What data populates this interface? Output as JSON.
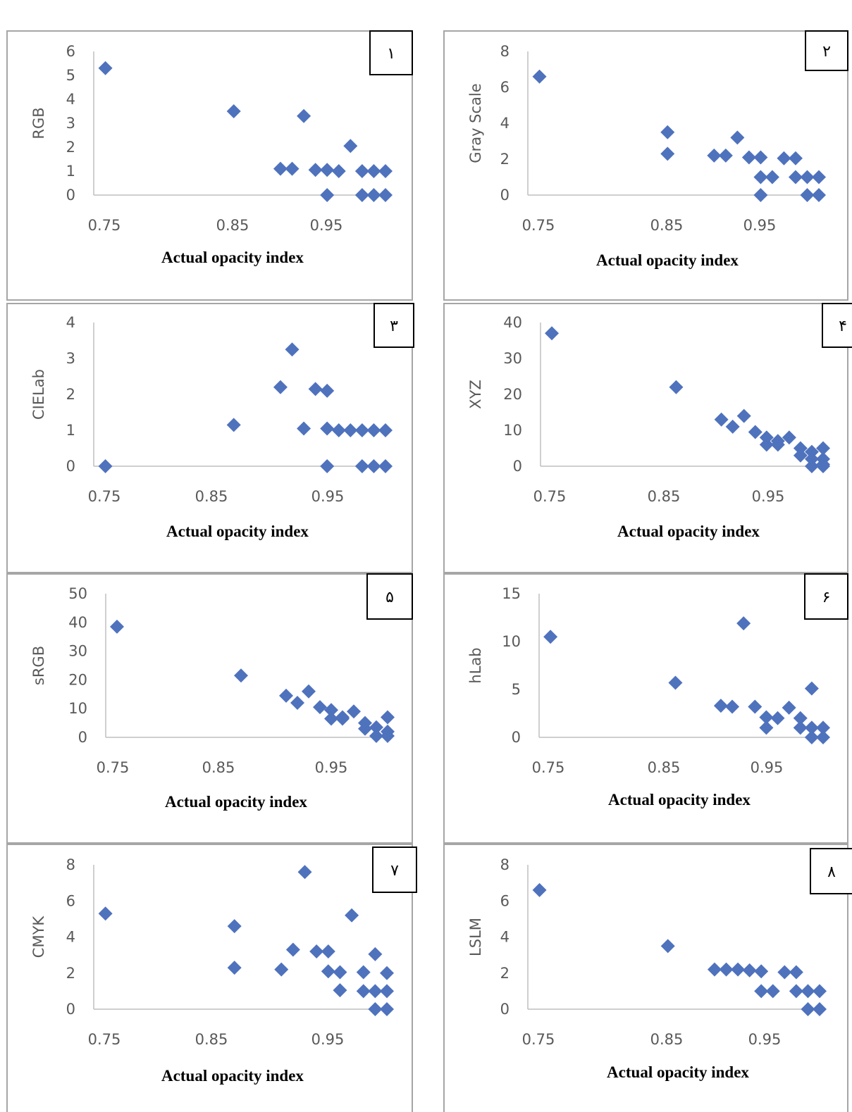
{
  "style": {
    "marker_color": "#4F72BD",
    "axis_color": "#BFBFBF",
    "frame_color": "#A6A6A6",
    "panel_background": "#FFFFFF"
  },
  "chart_data": [
    {
      "type": "scatter",
      "tag": "١",
      "xlabel": "Actual opacity index",
      "ylabel": "RGB",
      "xlim": [
        0.75,
        1.0
      ],
      "ylim": [
        0,
        6
      ],
      "xticks": [
        "0.75",
        "0.85",
        "0.95"
      ],
      "yticks": [
        "0",
        "1",
        "2",
        "3",
        "4",
        "5",
        "6"
      ],
      "grid": false,
      "legend": "none",
      "points": [
        [
          0.76,
          5.3
        ],
        [
          0.87,
          3.5
        ],
        [
          0.91,
          1.1
        ],
        [
          0.92,
          1.1
        ],
        [
          0.93,
          3.3
        ],
        [
          0.94,
          1.05
        ],
        [
          0.95,
          1.05
        ],
        [
          0.95,
          0.0
        ],
        [
          0.96,
          1.0
        ],
        [
          0.97,
          2.05
        ],
        [
          0.98,
          1.0
        ],
        [
          0.99,
          1.0
        ],
        [
          1.0,
          1.0
        ],
        [
          0.98,
          0.0
        ],
        [
          0.99,
          0.0
        ],
        [
          1.0,
          0.0
        ]
      ]
    },
    {
      "type": "scatter",
      "tag": "٢",
      "xlabel": "Actual opacity index",
      "ylabel": "Gray Scale",
      "xlim": [
        0.75,
        1.0
      ],
      "ylim": [
        0,
        8
      ],
      "xticks": [
        "0.75",
        "0.85",
        "0.95"
      ],
      "yticks": [
        "0",
        "2",
        "4",
        "6",
        "8"
      ],
      "grid": false,
      "legend": "none",
      "points": [
        [
          0.76,
          6.6
        ],
        [
          0.87,
          3.5
        ],
        [
          0.87,
          2.3
        ],
        [
          0.91,
          2.2
        ],
        [
          0.92,
          2.2
        ],
        [
          0.93,
          3.2
        ],
        [
          0.94,
          2.1
        ],
        [
          0.95,
          2.1
        ],
        [
          0.95,
          1.0
        ],
        [
          0.96,
          1.0
        ],
        [
          0.95,
          0.0
        ],
        [
          0.97,
          2.05
        ],
        [
          0.98,
          2.05
        ],
        [
          0.98,
          1.0
        ],
        [
          0.99,
          1.0
        ],
        [
          1.0,
          1.0
        ],
        [
          0.99,
          0.0
        ],
        [
          1.0,
          0.0
        ]
      ]
    },
    {
      "type": "scatter",
      "tag": "٣",
      "xlabel": "Actual opacity index",
      "ylabel": "CIELab",
      "xlim": [
        0.75,
        1.0
      ],
      "ylim": [
        0,
        4
      ],
      "xticks": [
        "0.75",
        "0.85",
        "0.95"
      ],
      "yticks": [
        "0",
        "1",
        "2",
        "3",
        "4"
      ],
      "grid": false,
      "legend": "none",
      "points": [
        [
          0.76,
          0.0
        ],
        [
          0.87,
          1.15
        ],
        [
          0.91,
          2.2
        ],
        [
          0.92,
          3.25
        ],
        [
          0.93,
          1.05
        ],
        [
          0.94,
          2.15
        ],
        [
          0.95,
          2.1
        ],
        [
          0.95,
          1.05
        ],
        [
          0.95,
          0.0
        ],
        [
          0.96,
          1.0
        ],
        [
          0.97,
          1.0
        ],
        [
          0.98,
          1.0
        ],
        [
          0.99,
          1.0
        ],
        [
          1.0,
          1.0
        ],
        [
          0.98,
          0.0
        ],
        [
          0.99,
          0.0
        ],
        [
          1.0,
          0.0
        ]
      ]
    },
    {
      "type": "scatter",
      "tag": "۴",
      "xlabel": "Actual opacity index",
      "ylabel": "XYZ",
      "xlim": [
        0.75,
        1.0
      ],
      "ylim": [
        0,
        40
      ],
      "xticks": [
        "0.75",
        "0.85",
        "0.95"
      ],
      "yticks": [
        "0",
        "10",
        "20",
        "30",
        "40"
      ],
      "grid": false,
      "legend": "none",
      "points": [
        [
          0.76,
          37
        ],
        [
          0.87,
          22
        ],
        [
          0.91,
          13
        ],
        [
          0.92,
          11
        ],
        [
          0.93,
          14
        ],
        [
          0.94,
          9.5
        ],
        [
          0.95,
          8
        ],
        [
          0.95,
          6
        ],
        [
          0.96,
          7
        ],
        [
          0.96,
          6
        ],
        [
          0.97,
          8
        ],
        [
          0.98,
          5
        ],
        [
          0.98,
          3
        ],
        [
          0.99,
          4
        ],
        [
          0.99,
          2
        ],
        [
          0.99,
          0
        ],
        [
          1.0,
          5
        ],
        [
          1.0,
          2
        ],
        [
          1.0,
          0.5
        ],
        [
          1.0,
          0
        ]
      ]
    },
    {
      "type": "scatter",
      "tag": "۵",
      "xlabel": "Actual opacity index",
      "ylabel": "sRGB",
      "xlim": [
        0.75,
        1.0
      ],
      "ylim": [
        0,
        50
      ],
      "xticks": [
        "0.75",
        "0.85",
        "0.95"
      ],
      "yticks": [
        "0",
        "10",
        "20",
        "30",
        "40",
        "50"
      ],
      "grid": false,
      "legend": "none",
      "points": [
        [
          0.76,
          38.5
        ],
        [
          0.87,
          21.5
        ],
        [
          0.91,
          14.5
        ],
        [
          0.92,
          12
        ],
        [
          0.93,
          16
        ],
        [
          0.94,
          10.5
        ],
        [
          0.95,
          9.5
        ],
        [
          0.95,
          6.5
        ],
        [
          0.96,
          7
        ],
        [
          0.96,
          6.5
        ],
        [
          0.97,
          9
        ],
        [
          0.98,
          5
        ],
        [
          0.98,
          3
        ],
        [
          0.99,
          3.5
        ],
        [
          0.99,
          0.5
        ],
        [
          1.0,
          7
        ],
        [
          1.0,
          2
        ],
        [
          1.0,
          0.5
        ]
      ]
    },
    {
      "type": "scatter",
      "tag": "۶",
      "xlabel": "Actual opacity index",
      "ylabel": "hLab",
      "xlim": [
        0.75,
        1.0
      ],
      "ylim": [
        0,
        15
      ],
      "xticks": [
        "0.75",
        "0.85",
        "0.95"
      ],
      "yticks": [
        "0",
        "5",
        "10",
        "15"
      ],
      "grid": false,
      "legend": "none",
      "points": [
        [
          0.76,
          10.5
        ],
        [
          0.87,
          5.7
        ],
        [
          0.91,
          3.3
        ],
        [
          0.92,
          3.2
        ],
        [
          0.93,
          11.9
        ],
        [
          0.94,
          3.2
        ],
        [
          0.95,
          2.1
        ],
        [
          0.95,
          1.0
        ],
        [
          0.96,
          2.0
        ],
        [
          0.97,
          3.1
        ],
        [
          0.98,
          2.0
        ],
        [
          0.98,
          1.0
        ],
        [
          0.99,
          5.1
        ],
        [
          0.99,
          1.0
        ],
        [
          0.99,
          0.0
        ],
        [
          1.0,
          1.0
        ],
        [
          1.0,
          0.0
        ]
      ]
    },
    {
      "type": "scatter",
      "tag": "٧",
      "xlabel": "Actual opacity index",
      "ylabel": "CMYK",
      "xlim": [
        0.75,
        1.0
      ],
      "ylim": [
        0,
        8
      ],
      "xticks": [
        "0.75",
        "0.85",
        "0.95"
      ],
      "yticks": [
        "0",
        "2",
        "4",
        "6",
        "8"
      ],
      "grid": false,
      "legend": "none",
      "points": [
        [
          0.76,
          5.3
        ],
        [
          0.87,
          4.6
        ],
        [
          0.87,
          2.3
        ],
        [
          0.91,
          2.2
        ],
        [
          0.92,
          3.3
        ],
        [
          0.93,
          7.6
        ],
        [
          0.94,
          3.2
        ],
        [
          0.95,
          3.2
        ],
        [
          0.95,
          2.1
        ],
        [
          0.96,
          2.05
        ],
        [
          0.96,
          1.05
        ],
        [
          0.97,
          5.2
        ],
        [
          0.98,
          2.05
        ],
        [
          0.98,
          1.0
        ],
        [
          0.99,
          3.05
        ],
        [
          0.99,
          1.0
        ],
        [
          0.99,
          0.0
        ],
        [
          1.0,
          2.0
        ],
        [
          1.0,
          1.0
        ],
        [
          1.0,
          0.0
        ]
      ]
    },
    {
      "type": "scatter",
      "tag": "٨",
      "xlabel": "Actual opacity index",
      "ylabel": "LSLM",
      "xlim": [
        0.75,
        1.0
      ],
      "ylim": [
        0,
        8
      ],
      "xticks": [
        "0.75",
        "0.85",
        "0.95"
      ],
      "yticks": [
        "0",
        "2",
        "4",
        "6",
        "8"
      ],
      "grid": false,
      "legend": "none",
      "points": [
        [
          0.76,
          6.6
        ],
        [
          0.87,
          3.5
        ],
        [
          0.91,
          2.2
        ],
        [
          0.92,
          2.2
        ],
        [
          0.93,
          2.2
        ],
        [
          0.94,
          2.15
        ],
        [
          0.95,
          2.1
        ],
        [
          0.95,
          1.0
        ],
        [
          0.96,
          1.0
        ],
        [
          0.97,
          2.05
        ],
        [
          0.98,
          2.05
        ],
        [
          0.98,
          1.0
        ],
        [
          0.99,
          1.0
        ],
        [
          1.0,
          1.0
        ],
        [
          0.99,
          0.0
        ],
        [
          1.0,
          0.0
        ]
      ]
    }
  ]
}
